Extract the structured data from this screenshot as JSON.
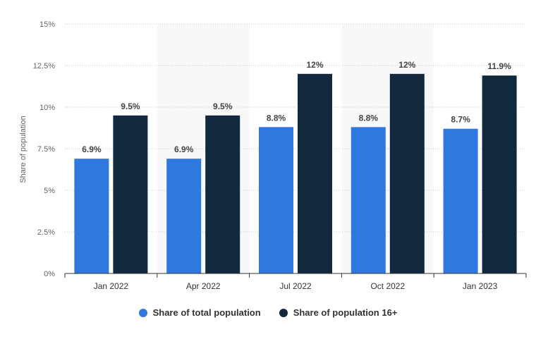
{
  "chart_data": {
    "type": "bar",
    "title": "",
    "xlabel": "",
    "ylabel": "Share of population",
    "categories": [
      "Jan 2022",
      "Apr 2022",
      "Jul 2022",
      "Oct 2022",
      "Jan 2023"
    ],
    "series": [
      {
        "name": "Share of total population",
        "color": "#2f78dd",
        "values": [
          6.9,
          6.9,
          8.8,
          8.8,
          8.7
        ],
        "labels": [
          "6.9%",
          "6.9%",
          "8.8%",
          "8.8%",
          "8.7%"
        ]
      },
      {
        "name": "Share of population 16+",
        "color": "#12283d",
        "values": [
          9.5,
          9.5,
          12,
          12,
          11.9
        ],
        "labels": [
          "9.5%",
          "9.5%",
          "12%",
          "12%",
          "11.9%"
        ]
      }
    ],
    "ylim": [
      0,
      15
    ],
    "yticks": [
      {
        "value": 0,
        "label": "0%"
      },
      {
        "value": 2.5,
        "label": "2.5%"
      },
      {
        "value": 5,
        "label": "5%"
      },
      {
        "value": 7.5,
        "label": "7.5%"
      },
      {
        "value": 10,
        "label": "10%"
      },
      {
        "value": 12.5,
        "label": "12.5%"
      },
      {
        "value": 15,
        "label": "15%"
      }
    ],
    "grid": true,
    "legend_position": "bottom-center",
    "colors": {
      "band": "#f8f8f8",
      "gridline": "#c8c8c8",
      "axis": "#333333",
      "tick_text": "#666666",
      "label_text": "#444444"
    }
  }
}
